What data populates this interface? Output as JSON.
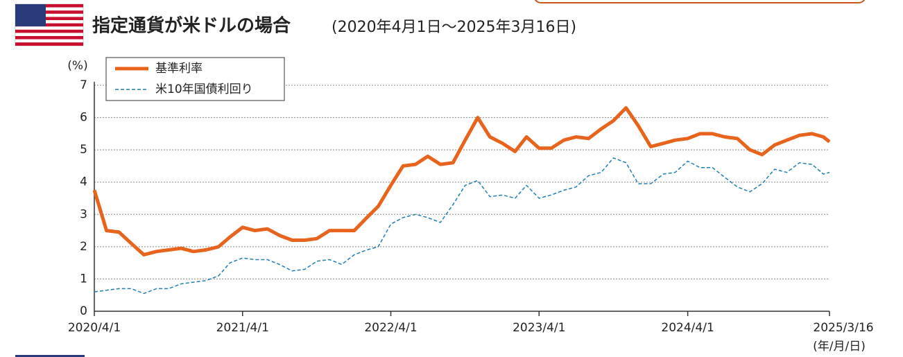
{
  "chart_data": {
    "type": "line",
    "title": "指定通貨が米ドルの場合",
    "subtitle": "(2020年4月1日〜2025年3月16日)",
    "y_label": "(%)",
    "x_label": "(年/月/日)",
    "x": [
      "2020/4/1",
      "2020/5/1",
      "2020/6/1",
      "2020/7/1",
      "2020/8/1",
      "2020/9/1",
      "2020/10/1",
      "2020/11/1",
      "2020/12/1",
      "2021/1/1",
      "2021/2/1",
      "2021/3/1",
      "2021/4/1",
      "2021/5/1",
      "2021/6/1",
      "2021/7/1",
      "2021/8/1",
      "2021/9/1",
      "2021/10/1",
      "2021/11/1",
      "2021/12/1",
      "2022/1/1",
      "2022/2/1",
      "2022/3/1",
      "2022/4/1",
      "2022/5/1",
      "2022/6/1",
      "2022/7/1",
      "2022/8/1",
      "2022/9/1",
      "2022/10/1",
      "2022/11/1",
      "2022/12/1",
      "2023/1/1",
      "2023/2/1",
      "2023/3/1",
      "2023/4/1",
      "2023/5/1",
      "2023/6/1",
      "2023/7/1",
      "2023/8/1",
      "2023/9/1",
      "2023/10/1",
      "2023/11/1",
      "2023/12/1",
      "2024/1/1",
      "2024/2/1",
      "2024/3/1",
      "2024/4/1",
      "2024/5/1",
      "2024/6/1",
      "2024/7/1",
      "2024/8/1",
      "2024/9/1",
      "2024/10/1",
      "2024/11/1",
      "2024/12/1",
      "2025/1/1",
      "2025/2/1",
      "2025/3/1",
      "2025/3/16"
    ],
    "series": [
      {
        "name": "基準利率",
        "color": "#e8641c",
        "style": "solid",
        "values": [
          3.75,
          2.5,
          2.45,
          2.1,
          1.75,
          1.85,
          1.9,
          1.95,
          1.85,
          1.9,
          2.0,
          2.3,
          2.6,
          2.5,
          2.55,
          2.35,
          2.2,
          2.2,
          2.25,
          2.5,
          2.5,
          2.5,
          2.9,
          3.25,
          3.9,
          4.5,
          4.55,
          4.8,
          4.55,
          4.6,
          5.3,
          6.0,
          5.4,
          5.2,
          4.95,
          5.4,
          5.05,
          5.05,
          5.3,
          5.4,
          5.35,
          5.65,
          5.9,
          6.3,
          5.75,
          5.1,
          5.2,
          5.3,
          5.35,
          5.5,
          5.5,
          5.4,
          5.35,
          5.0,
          4.85,
          5.15,
          5.3,
          5.45,
          5.5,
          5.4,
          5.25
        ]
      },
      {
        "name": "米10年国債利回り",
        "color": "#1f7fb3",
        "style": "dashed",
        "values": [
          0.6,
          0.65,
          0.7,
          0.7,
          0.55,
          0.7,
          0.7,
          0.85,
          0.9,
          0.95,
          1.1,
          1.5,
          1.65,
          1.6,
          1.6,
          1.45,
          1.25,
          1.3,
          1.55,
          1.6,
          1.45,
          1.75,
          1.9,
          2.0,
          2.7,
          2.9,
          3.0,
          2.9,
          2.75,
          3.3,
          3.9,
          4.05,
          3.55,
          3.6,
          3.5,
          3.9,
          3.5,
          3.6,
          3.75,
          3.85,
          4.2,
          4.3,
          4.75,
          4.6,
          3.95,
          3.95,
          4.25,
          4.3,
          4.65,
          4.45,
          4.45,
          4.15,
          3.85,
          3.7,
          3.95,
          4.4,
          4.3,
          4.6,
          4.55,
          4.25,
          4.3
        ]
      }
    ],
    "xlim": [
      "2020/4/1",
      "2025/3/16"
    ],
    "xticks": [
      "2020/4/1",
      "2021/4/1",
      "2022/4/1",
      "2023/4/1",
      "2024/4/1",
      "2025/3/16"
    ],
    "ylim": [
      0,
      7
    ],
    "yticks": [
      0,
      1,
      2,
      3,
      4,
      5,
      6,
      7
    ],
    "grid": true,
    "legend": "upper left"
  }
}
